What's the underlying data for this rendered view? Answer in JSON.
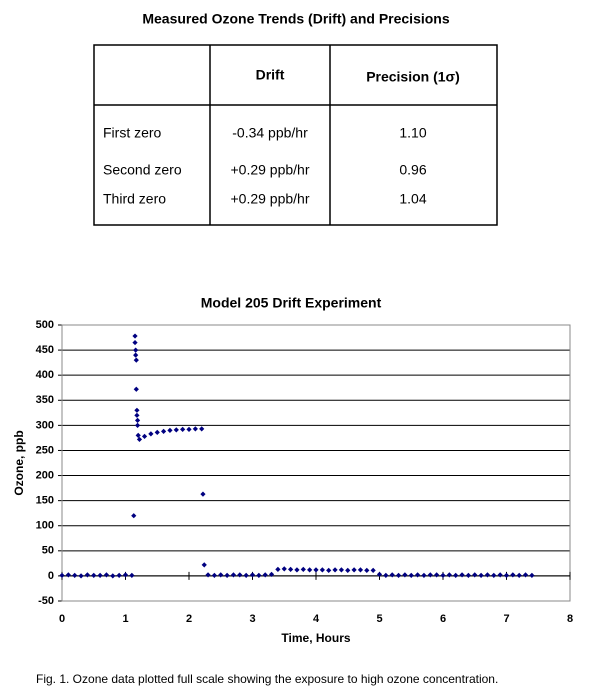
{
  "table": {
    "title": "Measured Ozone Trends (Drift) and Precisions",
    "header": [
      "Drift",
      "Precision (1σ)"
    ],
    "rows": [
      [
        "First zero",
        "-0.34 ppb/hr",
        "1.10"
      ],
      [
        "Second zero",
        "+0.29 ppb/hr",
        "0.96"
      ],
      [
        "Third zero",
        "+0.29 ppb/hr",
        "1.04"
      ]
    ]
  },
  "chart_data": {
    "type": "scatter",
    "title": "Model 205 Drift Experiment",
    "x_label": "Time, Hours",
    "y_label": "Ozone, ppb",
    "color": "#000080",
    "grid": true,
    "xlim": [
      0,
      8
    ],
    "xticks": [
      0,
      1,
      2,
      3,
      4,
      5,
      6,
      7,
      8
    ],
    "ylim": [
      -50,
      500
    ],
    "yticks": [
      -50,
      0,
      50,
      100,
      150,
      200,
      250,
      300,
      350,
      400,
      450,
      500
    ],
    "x": [
      0,
      0.1,
      0.2,
      0.3,
      0.4,
      0.5,
      0.6,
      0.7,
      0.8,
      0.9,
      1.0,
      1.1,
      1.13,
      1.15,
      1.15,
      1.16,
      1.16,
      1.17,
      1.17,
      1.18,
      1.18,
      1.19,
      1.19,
      1.2,
      1.22,
      1.3,
      1.4,
      1.5,
      1.6,
      1.7,
      1.8,
      1.9,
      2.0,
      2.1,
      2.2,
      2.22,
      2.24,
      2.3,
      2.4,
      2.5,
      2.6,
      2.7,
      2.8,
      2.9,
      3.0,
      3.1,
      3.2,
      3.3,
      3.4,
      3.5,
      3.6,
      3.7,
      3.8,
      3.9,
      4.0,
      4.1,
      4.2,
      4.3,
      4.4,
      4.5,
      4.6,
      4.7,
      4.8,
      4.9,
      5.0,
      5.1,
      5.2,
      5.3,
      5.4,
      5.5,
      5.6,
      5.7,
      5.8,
      5.9,
      6.0,
      6.1,
      6.2,
      6.3,
      6.4,
      6.5,
      6.6,
      6.7,
      6.8,
      6.9,
      7.0,
      7.1,
      7.2,
      7.3,
      7.4
    ],
    "values": [
      1,
      2,
      1,
      0,
      2,
      1,
      1,
      2,
      0,
      1,
      2,
      1,
      120,
      478,
      465,
      450,
      440,
      430,
      372,
      330,
      320,
      310,
      300,
      280,
      272,
      278,
      283,
      286,
      288,
      290,
      291,
      292,
      292,
      293,
      293,
      163,
      22,
      2,
      1,
      2,
      1,
      2,
      2,
      1,
      2,
      1,
      2,
      3,
      13,
      14,
      13,
      12,
      13,
      12,
      12,
      12,
      11,
      12,
      12,
      11,
      12,
      12,
      11,
      11,
      3,
      1,
      2,
      1,
      2,
      1,
      2,
      1,
      2,
      2,
      1,
      2,
      1,
      2,
      1,
      2,
      1,
      2,
      1,
      2,
      1,
      2,
      1,
      2,
      1
    ]
  },
  "caption": "Fig. 1.  Ozone data plotted full scale showing the exposure to high ozone concentration."
}
